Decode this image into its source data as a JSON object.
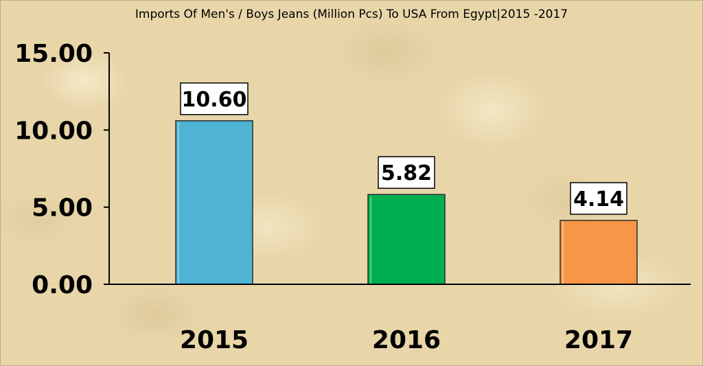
{
  "chart_data": {
    "type": "bar",
    "title": "Imports Of Men's / Boys Jeans (Million Pcs) To USA From Egypt|2015 -2017",
    "categories": [
      "2015",
      "2016",
      "2017"
    ],
    "values": [
      10.6,
      5.82,
      4.14
    ],
    "data_labels": [
      "10.60",
      "5.82",
      "4.14"
    ],
    "bar_colors": [
      "#4fb3d4",
      "#00b050",
      "#f79646"
    ],
    "ylim": [
      0,
      15
    ],
    "yticks": [
      0,
      5,
      10,
      15
    ],
    "ytick_labels": [
      "0.00",
      "5.00",
      "10.00",
      "15.00"
    ],
    "xlabel": "",
    "ylabel": "",
    "grid": false,
    "legend": false
  }
}
